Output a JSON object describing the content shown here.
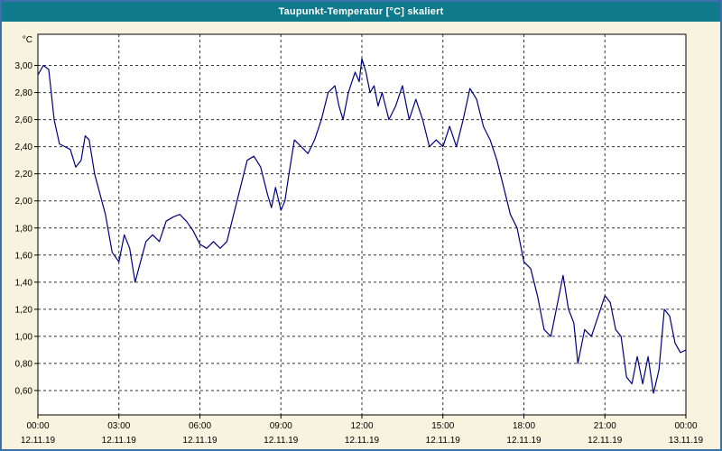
{
  "window": {
    "title": "Taupunkt-Temperatur [°C] skaliert"
  },
  "colors": {
    "titlebar": "#0e7a8b",
    "window_border": "#3f6fa8",
    "chart_background": "#f7f3de",
    "plot_background": "#ffffff",
    "grid": "#333333",
    "axis": "#000000",
    "line": "#000080",
    "title_text": "#ffffff"
  },
  "chart_data": {
    "type": "line",
    "title": "Taupunkt-Temperatur [°C] skaliert",
    "xlabel": "",
    "ylabel": "°C",
    "grid": "dashed",
    "legend": "none",
    "ylim": [
      0.42,
      3.23
    ],
    "xlim": [
      0,
      24
    ],
    "yticks": [
      3.0,
      2.8,
      2.6,
      2.4,
      2.2,
      2.0,
      1.8,
      1.6,
      1.4,
      1.2,
      1.0,
      0.8,
      0.6
    ],
    "ytick_labels": [
      "3,00",
      "2,80",
      "2,60",
      "2,40",
      "2,20",
      "2,00",
      "1,80",
      "1,60",
      "1,40",
      "1,20",
      "1,00",
      "0,80",
      "0,60"
    ],
    "xticks": [
      0,
      3,
      6,
      9,
      12,
      15,
      18,
      21,
      24
    ],
    "xtick_labels": [
      "00:00",
      "03:00",
      "06:00",
      "09:00",
      "12:00",
      "15:00",
      "18:00",
      "21:00",
      "00:00"
    ],
    "xtick_dates": [
      "12.11.19",
      "12.11.19",
      "12.11.19",
      "12.11.19",
      "12.11.19",
      "12.11.19",
      "12.11.19",
      "12.11.19",
      "13.11.19"
    ],
    "series": [
      {
        "name": "Taupunkt-Temperatur",
        "x": [
          0,
          0.2,
          0.4,
          0.6,
          0.8,
          1.0,
          1.2,
          1.4,
          1.6,
          1.75,
          1.9,
          2.1,
          2.3,
          2.5,
          2.75,
          3.0,
          3.2,
          3.4,
          3.6,
          3.8,
          4.0,
          4.25,
          4.5,
          4.75,
          5.0,
          5.25,
          5.5,
          5.75,
          6.0,
          6.25,
          6.5,
          6.75,
          7.0,
          7.25,
          7.5,
          7.75,
          8.0,
          8.25,
          8.5,
          8.65,
          8.8,
          9.0,
          9.15,
          9.3,
          9.5,
          9.75,
          10.0,
          10.25,
          10.5,
          10.75,
          11.0,
          11.15,
          11.3,
          11.5,
          11.75,
          11.9,
          12.0,
          12.15,
          12.3,
          12.45,
          12.6,
          12.75,
          13.0,
          13.25,
          13.5,
          13.75,
          14.0,
          14.25,
          14.5,
          14.75,
          15.0,
          15.25,
          15.5,
          15.75,
          16.0,
          16.25,
          16.5,
          16.75,
          17.0,
          17.25,
          17.5,
          17.75,
          18.0,
          18.25,
          18.5,
          18.75,
          19.0,
          19.25,
          19.45,
          19.65,
          19.85,
          20.0,
          20.25,
          20.5,
          20.75,
          21.0,
          21.2,
          21.4,
          21.6,
          21.8,
          22.0,
          22.2,
          22.4,
          22.6,
          22.8,
          23.0,
          23.2,
          23.4,
          23.6,
          23.8,
          24.0
        ],
        "y": [
          2.93,
          3.0,
          2.97,
          2.6,
          2.42,
          2.4,
          2.38,
          2.25,
          2.3,
          2.48,
          2.45,
          2.2,
          2.05,
          1.9,
          1.62,
          1.55,
          1.75,
          1.65,
          1.4,
          1.55,
          1.7,
          1.75,
          1.7,
          1.85,
          1.88,
          1.9,
          1.85,
          1.78,
          1.68,
          1.65,
          1.7,
          1.65,
          1.7,
          1.9,
          2.1,
          2.3,
          2.33,
          2.25,
          2.05,
          1.95,
          2.1,
          1.93,
          2.0,
          2.2,
          2.45,
          2.4,
          2.35,
          2.45,
          2.6,
          2.8,
          2.85,
          2.7,
          2.6,
          2.8,
          2.95,
          2.88,
          3.05,
          2.95,
          2.8,
          2.85,
          2.7,
          2.8,
          2.6,
          2.7,
          2.85,
          2.6,
          2.75,
          2.6,
          2.4,
          2.45,
          2.4,
          2.55,
          2.4,
          2.6,
          2.83,
          2.75,
          2.55,
          2.45,
          2.3,
          2.1,
          1.9,
          1.8,
          1.55,
          1.5,
          1.3,
          1.05,
          1.0,
          1.25,
          1.45,
          1.2,
          1.1,
          0.8,
          1.05,
          1.0,
          1.15,
          1.3,
          1.25,
          1.05,
          1.0,
          0.7,
          0.65,
          0.85,
          0.65,
          0.85,
          0.58,
          0.75,
          1.2,
          1.15,
          0.95,
          0.88,
          0.9
        ]
      }
    ]
  }
}
